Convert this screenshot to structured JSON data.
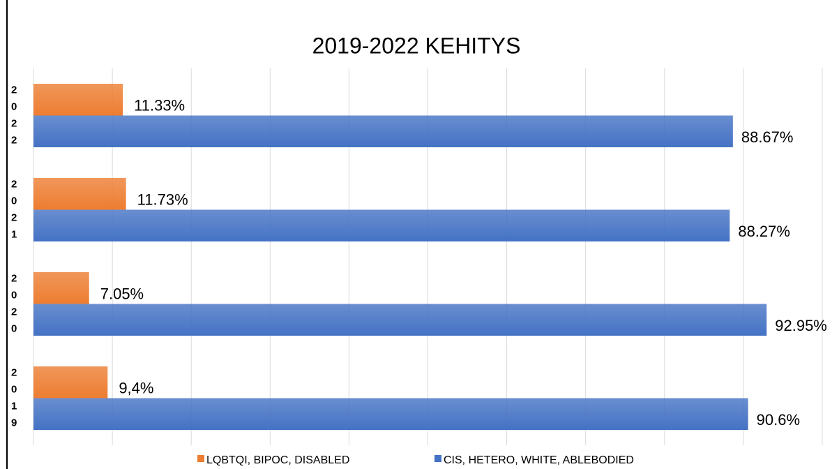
{
  "chart_data": {
    "type": "bar",
    "orientation": "horizontal",
    "title": "2019-2022 KEHITYS",
    "categories": [
      "2022",
      "2021",
      "2020",
      "2019"
    ],
    "series": [
      {
        "name": "LQBTQI, BIPOC, DISABLED",
        "color": "#ed7d31",
        "values": [
          11.33,
          11.73,
          7.05,
          9.4
        ],
        "value_labels": [
          "11.33%",
          "11.73%",
          "7.05%",
          "9,4%"
        ]
      },
      {
        "name": "CIS, HETERO, WHITE, ABLEBODIED",
        "color": "#4472c4",
        "values": [
          88.67,
          88.27,
          92.95,
          90.6
        ],
        "value_labels": [
          "88.67%",
          "88.27%",
          "92.95%",
          "90.6%"
        ]
      }
    ],
    "xlim": [
      0,
      100
    ],
    "xticks": [
      0,
      10,
      20,
      30,
      40,
      50,
      60,
      70,
      80,
      90,
      100
    ],
    "grid": true,
    "legend": "bottom"
  }
}
